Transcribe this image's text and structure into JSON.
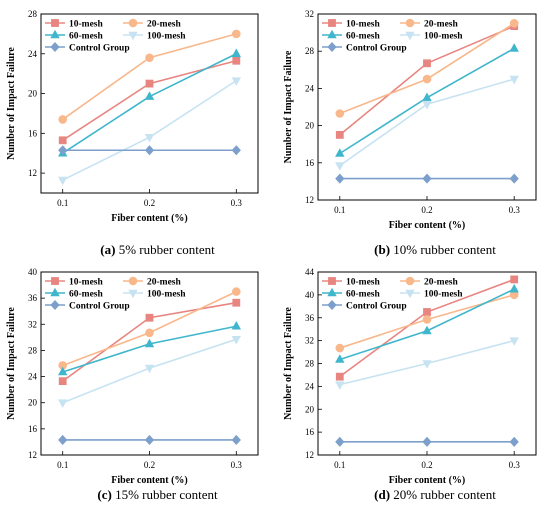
{
  "colors": {
    "10-mesh": "#e88580",
    "20-mesh": "#f9b78c",
    "60-mesh": "#3fb6cc",
    "100-mesh": "#c7e3f2",
    "Control Group": "#7c9fcb"
  },
  "chart_data": [
    {
      "type": "line",
      "caption_letter": "(a)",
      "caption_text": " 5% rubber content",
      "xlabel": "Fiber content (%)",
      "ylabel": "Number of Impact Failure",
      "x": [
        0.1,
        0.2,
        0.3
      ],
      "xticks": [
        "0.1",
        "0.2",
        "0.3"
      ],
      "ylim": [
        10,
        28
      ],
      "yticks": [
        12,
        16,
        20,
        24,
        28
      ],
      "series": [
        {
          "name": "10-mesh",
          "marker": "square",
          "values": [
            15.3,
            21.0,
            23.3
          ]
        },
        {
          "name": "20-mesh",
          "marker": "circle",
          "values": [
            17.4,
            23.6,
            26.0
          ]
        },
        {
          "name": "60-mesh",
          "marker": "triangle",
          "values": [
            14.0,
            19.7,
            24.0
          ]
        },
        {
          "name": "100-mesh",
          "marker": "triangle-down",
          "values": [
            11.3,
            15.6,
            21.3
          ]
        },
        {
          "name": "Control Group",
          "marker": "diamond",
          "values": [
            14.3,
            14.3,
            14.3
          ]
        }
      ]
    },
    {
      "type": "line",
      "caption_letter": "(b)",
      "caption_text": " 10% rubber content",
      "xlabel": "Fiber content (%)",
      "ylabel": "Number of Impact Failure",
      "x": [
        0.1,
        0.2,
        0.3
      ],
      "xticks": [
        "0.1",
        "0.2",
        "0.3"
      ],
      "ylim": [
        12,
        32
      ],
      "yticks": [
        12,
        16,
        20,
        24,
        28,
        32
      ],
      "series": [
        {
          "name": "10-mesh",
          "marker": "square",
          "values": [
            19.0,
            26.7,
            30.7
          ]
        },
        {
          "name": "20-mesh",
          "marker": "circle",
          "values": [
            21.3,
            25.0,
            31.0
          ]
        },
        {
          "name": "60-mesh",
          "marker": "triangle",
          "values": [
            17.0,
            23.0,
            28.3
          ]
        },
        {
          "name": "100-mesh",
          "marker": "triangle-down",
          "values": [
            15.7,
            22.3,
            25.0
          ]
        },
        {
          "name": "Control Group",
          "marker": "diamond",
          "values": [
            14.3,
            14.3,
            14.3
          ]
        }
      ]
    },
    {
      "type": "line",
      "caption_letter": "(c)",
      "caption_text": " 15% rubber content",
      "xlabel": "Fiber content (%)",
      "ylabel": "Number of Impact Failure",
      "x": [
        0.1,
        0.2,
        0.3
      ],
      "xticks": [
        "0.1",
        "0.2",
        "0.3"
      ],
      "ylim": [
        12,
        40
      ],
      "yticks": [
        12,
        16,
        20,
        24,
        28,
        32,
        36,
        40
      ],
      "series": [
        {
          "name": "10-mesh",
          "marker": "square",
          "values": [
            23.3,
            33.0,
            35.3
          ]
        },
        {
          "name": "20-mesh",
          "marker": "circle",
          "values": [
            25.7,
            30.7,
            37.0
          ]
        },
        {
          "name": "60-mesh",
          "marker": "triangle",
          "values": [
            24.7,
            29.0,
            31.7
          ]
        },
        {
          "name": "100-mesh",
          "marker": "triangle-down",
          "values": [
            20.0,
            25.3,
            29.7
          ]
        },
        {
          "name": "Control Group",
          "marker": "diamond",
          "values": [
            14.3,
            14.3,
            14.3
          ]
        }
      ]
    },
    {
      "type": "line",
      "caption_letter": "(d)",
      "caption_text": " 20% rubber content",
      "xlabel": "Fiber content (%)",
      "ylabel": "Number of Impact Failure",
      "x": [
        0.1,
        0.2,
        0.3
      ],
      "xticks": [
        "0.1",
        "0.2",
        "0.3"
      ],
      "ylim": [
        12,
        44
      ],
      "yticks": [
        12,
        16,
        20,
        24,
        28,
        32,
        36,
        40,
        44
      ],
      "series": [
        {
          "name": "10-mesh",
          "marker": "square",
          "values": [
            25.7,
            37.0,
            42.7
          ]
        },
        {
          "name": "20-mesh",
          "marker": "circle",
          "values": [
            30.7,
            35.7,
            40.0
          ]
        },
        {
          "name": "60-mesh",
          "marker": "triangle",
          "values": [
            28.7,
            33.7,
            41.0
          ]
        },
        {
          "name": "100-mesh",
          "marker": "triangle-down",
          "values": [
            24.3,
            28.0,
            32.0
          ]
        },
        {
          "name": "Control Group",
          "marker": "diamond",
          "values": [
            14.3,
            14.3,
            14.3
          ]
        }
      ]
    }
  ]
}
